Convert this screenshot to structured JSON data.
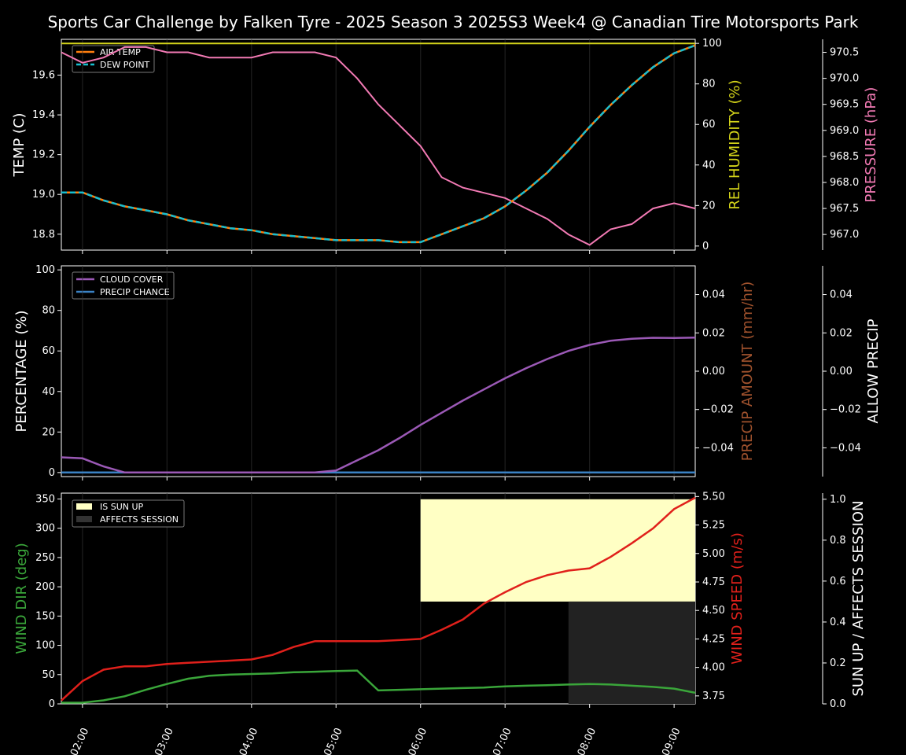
{
  "title": "Sports Car Challenge by Falken Tyre - 2025 Season 3 2025S3 Week4 @ Canadian Tire Motorsports Park",
  "x_ticks": [
    "02:00",
    "03:00",
    "04:00",
    "05:00",
    "06:00",
    "07:00",
    "08:00",
    "09:00"
  ],
  "colors": {
    "air_temp": "#ff7f0e",
    "dew_point": "#17becf",
    "humidity": "#d4d41a",
    "pressure": "#f27ab4",
    "cloud": "#9b59b6",
    "precip_chance": "#3b82c4",
    "precip_amount": "#a0522d",
    "wind_dir": "#3aa63a",
    "wind_speed": "#e0201b",
    "sun_up": "#ffffc4",
    "affects": "#222222"
  },
  "chart_data": [
    {
      "type": "line",
      "panel": "temperature",
      "ylabel": "TEMP (C)",
      "ylabel_right": "REL HUMIDITY (%)",
      "ylabel_far": "PRESSURE (hPa)",
      "ylim": [
        18.72,
        19.78
      ],
      "ylim_right": [
        -2,
        102
      ],
      "ylim_far": [
        966.7,
        970.75
      ],
      "yticks": [
        "18.8",
        "19.0",
        "19.2",
        "19.4",
        "19.6"
      ],
      "yticks_right": [
        "0",
        "20",
        "40",
        "60",
        "80",
        "100"
      ],
      "yticks_far": [
        "967.0",
        "967.5",
        "968.0",
        "968.5",
        "969.0",
        "969.5",
        "970.0",
        "970.5"
      ],
      "legend": [
        "AIR TEMP",
        "DEW POINT"
      ],
      "x": [
        1.75,
        2.0,
        2.25,
        2.5,
        2.75,
        3.0,
        3.25,
        3.5,
        3.75,
        4.0,
        4.25,
        4.5,
        4.75,
        5.0,
        5.25,
        5.5,
        5.75,
        6.0,
        6.25,
        6.5,
        6.75,
        7.0,
        7.25,
        7.5,
        7.75,
        8.0,
        8.25,
        8.5,
        8.75,
        9.0,
        9.25
      ],
      "series": [
        {
          "name": "AIR TEMP",
          "axis": "left",
          "values": [
            19.01,
            19.01,
            18.97,
            18.94,
            18.92,
            18.9,
            18.87,
            18.85,
            18.83,
            18.82,
            18.8,
            18.79,
            18.78,
            18.77,
            18.77,
            18.77,
            18.76,
            18.76,
            18.8,
            18.84,
            18.88,
            18.94,
            19.02,
            19.11,
            19.22,
            19.34,
            19.45,
            19.55,
            19.64,
            19.71,
            19.75
          ]
        },
        {
          "name": "DEW POINT",
          "axis": "left",
          "values": [
            19.01,
            19.01,
            18.97,
            18.94,
            18.92,
            18.9,
            18.87,
            18.85,
            18.83,
            18.82,
            18.8,
            18.79,
            18.78,
            18.77,
            18.77,
            18.77,
            18.76,
            18.76,
            18.8,
            18.84,
            18.88,
            18.94,
            19.02,
            19.11,
            19.22,
            19.34,
            19.45,
            19.55,
            19.64,
            19.71,
            19.75
          ]
        },
        {
          "name": "REL HUMIDITY",
          "axis": "right",
          "values": [
            100,
            100,
            100,
            100,
            100,
            100,
            100,
            100,
            100,
            100,
            100,
            100,
            100,
            100,
            100,
            100,
            100,
            100,
            100,
            100,
            100,
            100,
            100,
            100,
            100,
            100,
            100,
            100,
            100,
            100,
            100
          ]
        },
        {
          "name": "PRESSURE",
          "axis": "far",
          "values": [
            970.5,
            970.3,
            970.4,
            970.6,
            970.6,
            970.5,
            970.5,
            970.4,
            970.4,
            970.4,
            970.5,
            970.5,
            970.5,
            970.4,
            970.0,
            969.5,
            969.1,
            968.7,
            968.1,
            967.9,
            967.8,
            967.7,
            967.5,
            967.3,
            967.0,
            966.8,
            967.1,
            967.2,
            967.5,
            967.6,
            967.5
          ]
        }
      ]
    },
    {
      "type": "line",
      "panel": "precipitation",
      "ylabel": "PERCENTAGE (%)",
      "ylabel_right": "PRECIP AMOUNT (mm/hr)",
      "ylabel_far": "ALLOW PRECIP",
      "ylim": [
        -2,
        102
      ],
      "ylim_right": [
        -0.055,
        0.055
      ],
      "yticks": [
        "0",
        "20",
        "40",
        "60",
        "80",
        "100"
      ],
      "yticks_right": [
        "−0.04",
        "−0.02",
        "0.00",
        "0.02",
        "0.04"
      ],
      "yticks_far": [
        "−0.04",
        "−0.02",
        "0.00",
        "0.02",
        "0.04"
      ],
      "legend": [
        "CLOUD COVER",
        "PRECIP CHANCE"
      ],
      "x": [
        1.75,
        2.0,
        2.25,
        2.5,
        2.75,
        3.0,
        3.25,
        3.5,
        3.75,
        4.0,
        4.25,
        4.5,
        4.75,
        5.0,
        5.25,
        5.5,
        5.75,
        6.0,
        6.25,
        6.5,
        6.75,
        7.0,
        7.25,
        7.5,
        7.75,
        8.0,
        8.25,
        8.5,
        8.75,
        9.0,
        9.25
      ],
      "series": [
        {
          "name": "CLOUD COVER",
          "values": [
            7.5,
            7,
            3,
            0,
            0,
            0,
            0,
            0,
            0,
            0,
            0,
            0,
            0,
            1,
            6,
            11,
            17,
            23.5,
            29.5,
            35.5,
            41,
            46.5,
            51.5,
            56,
            60,
            63,
            65,
            66,
            66.5,
            66.4,
            66.6
          ]
        },
        {
          "name": "PRECIP CHANCE",
          "values": [
            0,
            0,
            0,
            0,
            0,
            0,
            0,
            0,
            0,
            0,
            0,
            0,
            0,
            0,
            0,
            0,
            0,
            0,
            0,
            0,
            0,
            0,
            0,
            0,
            0,
            0,
            0,
            0,
            0,
            0,
            0
          ]
        }
      ]
    },
    {
      "type": "line",
      "panel": "wind",
      "ylabel": "WIND DIR (deg)",
      "ylabel_right": "WIND SPEED (m/s)",
      "ylabel_far": "SUN UP / AFFECTS SESSION",
      "ylim": [
        0,
        360
      ],
      "ylim_right": [
        3.68,
        5.53
      ],
      "ylim_far": [
        0,
        1.03
      ],
      "yticks": [
        "0",
        "50",
        "100",
        "150",
        "200",
        "250",
        "300",
        "350"
      ],
      "yticks_right": [
        "3.75",
        "4.00",
        "4.25",
        "4.50",
        "4.75",
        "5.00",
        "5.25",
        "5.50"
      ],
      "yticks_far": [
        "0.0",
        "0.2",
        "0.4",
        "0.6",
        "0.8",
        "1.0"
      ],
      "legend": [
        "IS SUN UP",
        "AFFECTS SESSION"
      ],
      "x": [
        1.75,
        2.0,
        2.25,
        2.5,
        2.75,
        3.0,
        3.25,
        3.5,
        3.75,
        4.0,
        4.25,
        4.5,
        4.75,
        5.0,
        5.25,
        5.5,
        5.75,
        6.0,
        6.25,
        6.5,
        6.75,
        7.0,
        7.25,
        7.5,
        7.75,
        8.0,
        8.25,
        8.5,
        8.75,
        9.0,
        9.25
      ],
      "series": [
        {
          "name": "WIND DIR",
          "axis": "left",
          "values": [
            2,
            2,
            6,
            13,
            24,
            34,
            43,
            48,
            50,
            51,
            52,
            54,
            55,
            56,
            57,
            23,
            24,
            25,
            26,
            27,
            28,
            30,
            31,
            32,
            33,
            34,
            33,
            31,
            29,
            26,
            19
          ]
        },
        {
          "name": "WIND SPEED",
          "axis": "right",
          "values": [
            3.71,
            3.88,
            3.98,
            4.01,
            4.01,
            4.03,
            4.04,
            4.05,
            4.06,
            4.07,
            4.11,
            4.18,
            4.23,
            4.23,
            4.23,
            4.23,
            4.24,
            4.25,
            4.33,
            4.42,
            4.56,
            4.66,
            4.75,
            4.81,
            4.85,
            4.87,
            4.97,
            5.09,
            5.22,
            5.39,
            5.49
          ]
        }
      ],
      "sun_up": {
        "start": 6.0,
        "end": 9.25,
        "value": 1.0
      },
      "affects_session": {
        "start": 7.75,
        "end": 9.25,
        "value": 0.5
      }
    }
  ]
}
